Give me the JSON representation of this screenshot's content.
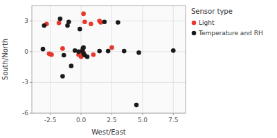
{
  "chart_data": {
    "type": "scatter",
    "xlabel": "West/East",
    "ylabel": "South/North",
    "legend_title": "Sensor type",
    "legend": "upper right",
    "grid": true,
    "xlim": [
      -4.0,
      8.5
    ],
    "ylim": [
      -6.0,
      4.5
    ],
    "xticks": [
      -2.5,
      {
        "value": 0.0,
        "label": "0.0"
      },
      2.5,
      {
        "value": 5.0,
        "label": "5.0"
      },
      7.5
    ],
    "yticks": [
      -6,
      -3,
      0,
      3
    ],
    "series": [
      {
        "name": "Light",
        "color": "#e8362a",
        "x": [
          0.0,
          -1.8,
          -2.8,
          -1.5,
          -2.6,
          -2.5,
          -2.4,
          0.2,
          0.3,
          1.5,
          1.6,
          0.8,
          0.2,
          -0.2,
          0.0,
          1.0,
          2.5
        ],
        "values": [
          0.0,
          2.8,
          2.7,
          0.3,
          -0.2,
          -0.25,
          -0.3,
          3.7,
          2.9,
          3.0,
          2.85,
          2.7,
          -0.1,
          -0.3,
          -0.5,
          -0.3,
          0.4
        ]
      },
      {
        "name": "Temperature and RH",
        "color": "#1a1a1a",
        "x": [
          -1.7,
          -1.0,
          -1.1,
          -3.0,
          -3.1,
          -1.5,
          -0.5,
          -0.2,
          0.1,
          0.2,
          0.3,
          0.5,
          1.5,
          2.2,
          3.5,
          4.5,
          4.7,
          7.5,
          0.15,
          0.2,
          -1.4,
          -0.8,
          1.9,
          3.0,
          -0.1
        ],
        "values": [
          3.2,
          2.9,
          2.55,
          2.55,
          0.25,
          -2.4,
          0.1,
          0.0,
          0.05,
          -0.2,
          -0.35,
          -0.5,
          0.05,
          0.05,
          0.05,
          -5.2,
          -0.1,
          0.1,
          0.3,
          0.4,
          -0.35,
          -1.4,
          2.9,
          2.85,
          2.2
        ]
      }
    ]
  }
}
